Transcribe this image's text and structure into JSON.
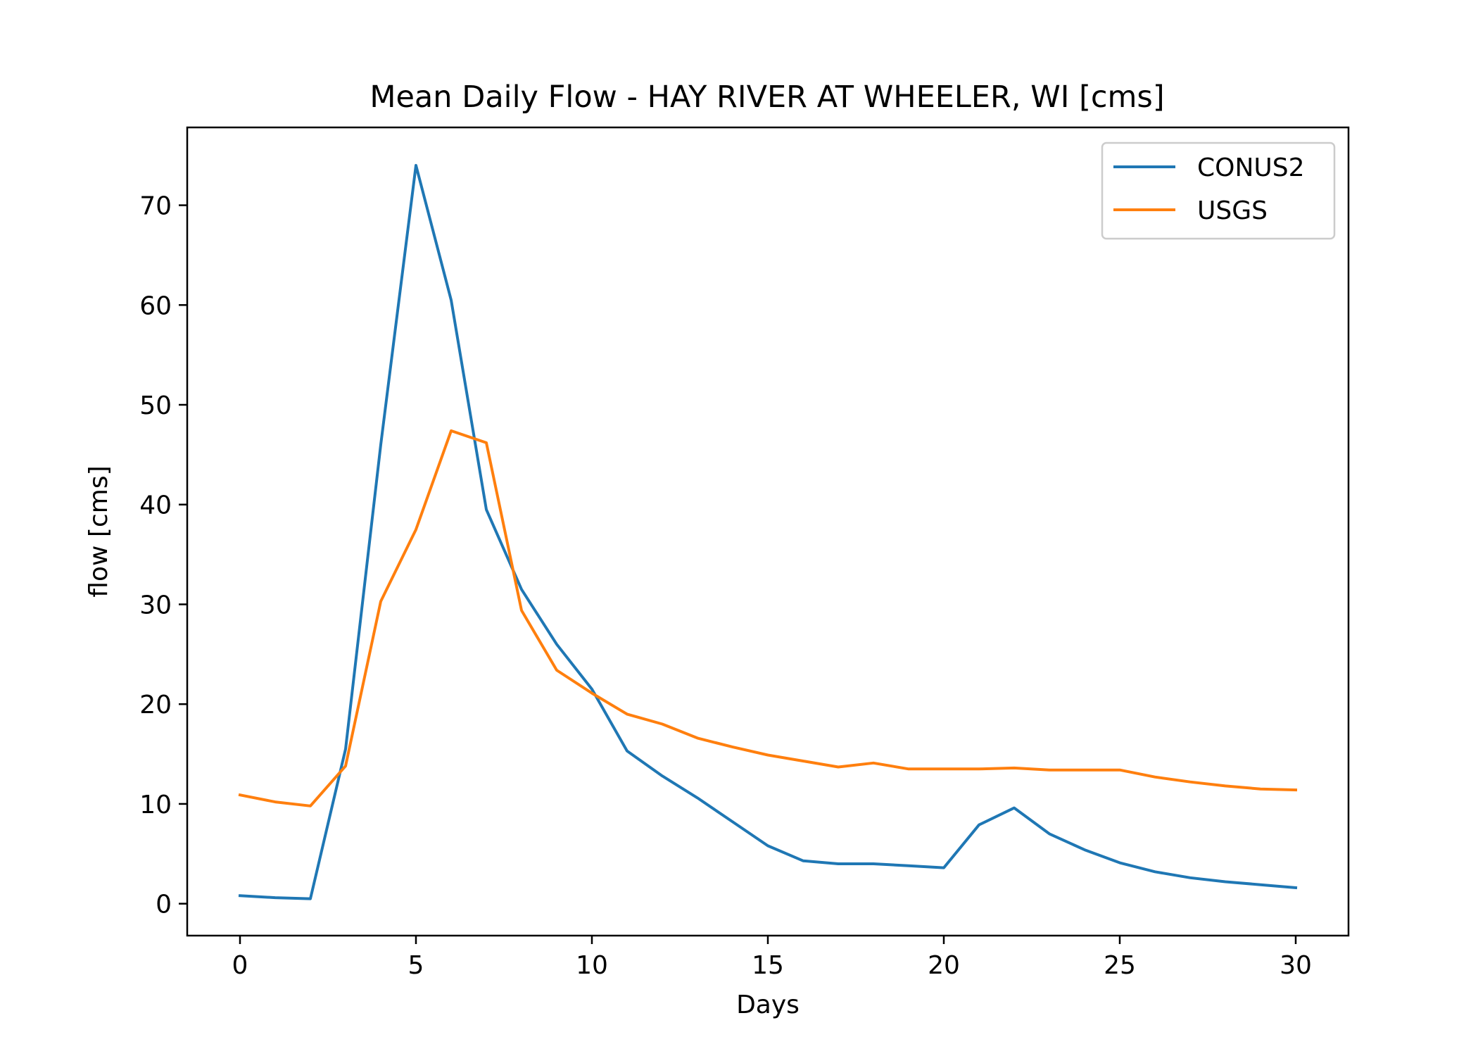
{
  "chart_data": {
    "type": "line",
    "title": "Mean Daily Flow - HAY RIVER AT WHEELER, WI [cms]",
    "xlabel": "Days",
    "ylabel": "flow [cms]",
    "xlim": [
      -1.5,
      31.5
    ],
    "ylim": [
      -3.2,
      77.8
    ],
    "xticks": [
      0,
      5,
      10,
      15,
      20,
      25,
      30
    ],
    "yticks": [
      0,
      10,
      20,
      30,
      40,
      50,
      60,
      70
    ],
    "grid": false,
    "legend_position": "top-right",
    "x": [
      0,
      1,
      2,
      3,
      4,
      5,
      6,
      7,
      8,
      9,
      10,
      11,
      12,
      13,
      14,
      15,
      16,
      17,
      18,
      19,
      20,
      21,
      22,
      23,
      24,
      25,
      26,
      27,
      28,
      29,
      30
    ],
    "series": [
      {
        "name": "CONUS2",
        "color": "#1f77b4",
        "values": [
          0.8,
          0.6,
          0.5,
          15.5,
          46,
          74,
          60.5,
          39.5,
          31.5,
          26,
          21.5,
          15.3,
          12.8,
          10.6,
          8.2,
          5.8,
          4.3,
          4.0,
          4.0,
          3.8,
          3.6,
          7.9,
          9.6,
          7.0,
          5.4,
          4.1,
          3.2,
          2.6,
          2.2,
          1.9,
          1.6
        ]
      },
      {
        "name": "USGS",
        "color": "#ff7f0e",
        "values": [
          10.9,
          10.2,
          9.8,
          13.8,
          30.3,
          37.5,
          47.4,
          46.2,
          29.4,
          23.4,
          21.1,
          19.0,
          18.0,
          16.6,
          15.7,
          14.9,
          14.3,
          13.7,
          14.1,
          13.5,
          13.5,
          13.5,
          13.6,
          13.4,
          13.4,
          13.4,
          12.7,
          12.2,
          11.8,
          11.5,
          11.4
        ]
      }
    ]
  }
}
